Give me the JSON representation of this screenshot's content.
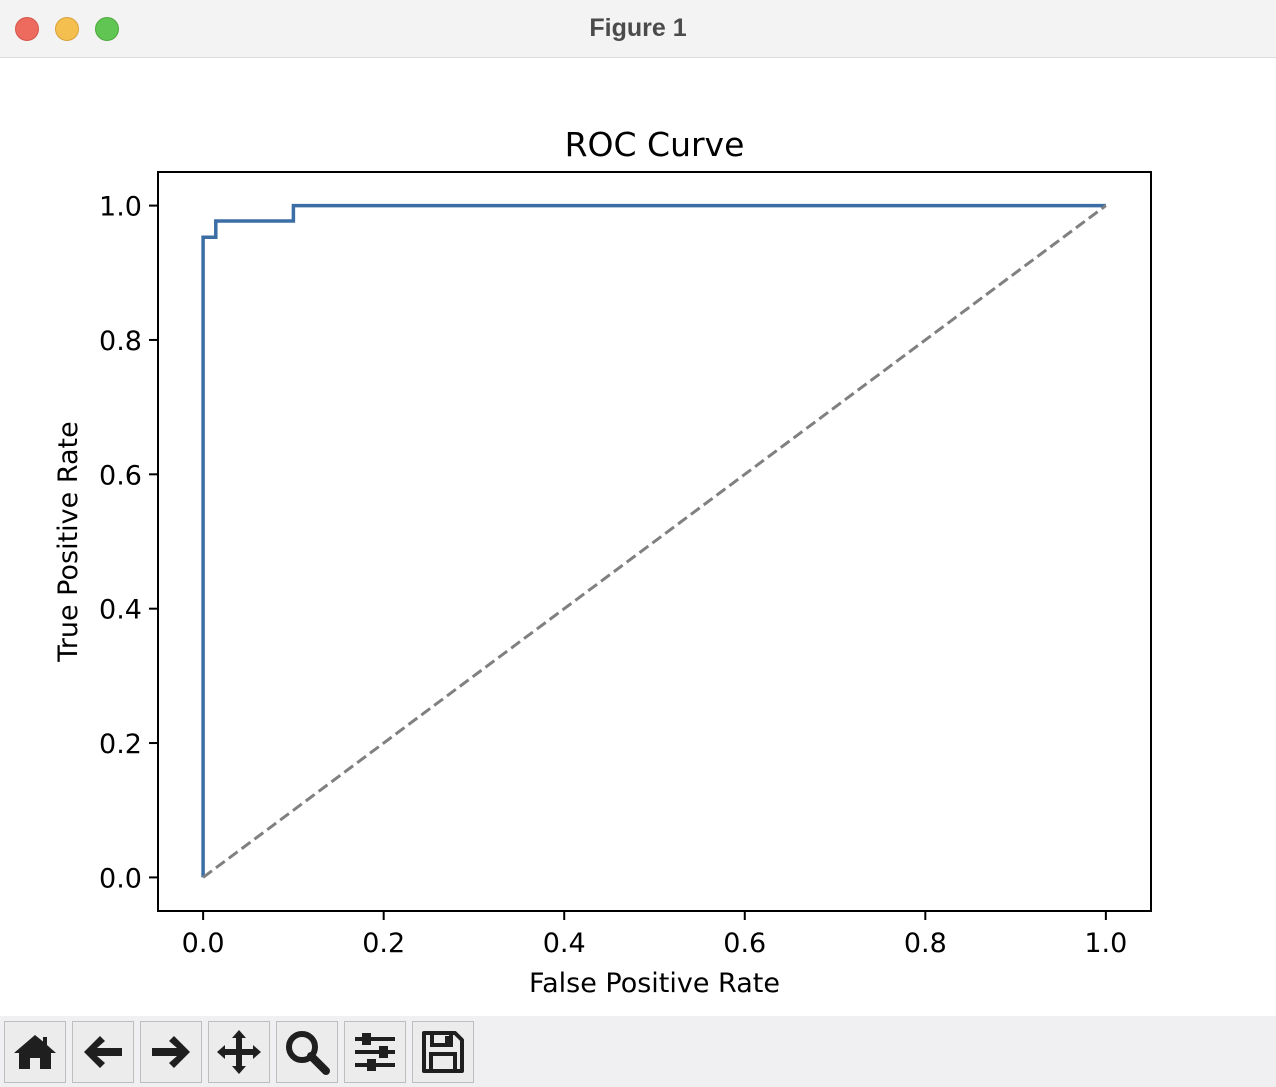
{
  "window": {
    "title": "Figure 1"
  },
  "toolbar": {
    "buttons": [
      {
        "icon": "home-icon",
        "action": "home"
      },
      {
        "icon": "arrow-left-icon",
        "action": "back"
      },
      {
        "icon": "arrow-right-icon",
        "action": "forward"
      },
      {
        "icon": "move-icon",
        "action": "pan"
      },
      {
        "icon": "zoom-icon",
        "action": "zoom"
      },
      {
        "icon": "sliders-icon",
        "action": "configure-subplots"
      },
      {
        "icon": "save-icon",
        "action": "save"
      }
    ]
  },
  "chart_data": {
    "type": "line",
    "title": "ROC Curve",
    "xlabel": "False Positive Rate",
    "ylabel": "True Positive Rate",
    "xlim": [
      -0.05,
      1.05
    ],
    "ylim": [
      -0.05,
      1.05
    ],
    "xticks": [
      "0.0",
      "0.2",
      "0.4",
      "0.6",
      "0.8",
      "1.0"
    ],
    "yticks": [
      "0.0",
      "0.2",
      "0.4",
      "0.6",
      "0.8",
      "1.0"
    ],
    "grid": false,
    "series": [
      {
        "style": "solid",
        "color": "#3a6ea5",
        "x": [
          0.0,
          0.0,
          0.0,
          0.014,
          0.014,
          0.1,
          0.1,
          1.0
        ],
        "y": [
          0.0,
          0.0,
          0.953,
          0.953,
          0.977,
          0.977,
          1.0,
          1.0
        ]
      },
      {
        "style": "dashed",
        "color": "#808080",
        "x": [
          0.0,
          1.0
        ],
        "y": [
          0.0,
          1.0
        ]
      }
    ]
  }
}
